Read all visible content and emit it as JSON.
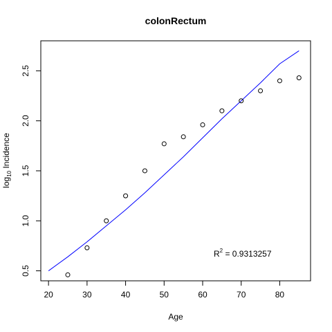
{
  "chart_data": {
    "type": "scatter",
    "title": "colonRectum",
    "xlabel": "Age",
    "ylabel": {
      "base": "log",
      "subscript": "10",
      "rest": " Incidence"
    },
    "xlim": [
      18,
      88
    ],
    "ylim": [
      0.4,
      2.8
    ],
    "x_ticks": [
      20,
      30,
      40,
      50,
      60,
      70,
      80
    ],
    "y_ticks": [
      0.5,
      1.0,
      1.5,
      2.0,
      2.5
    ],
    "y_tick_labels": [
      "0.5",
      "1.0",
      "1.5",
      "2.0",
      "2.5"
    ],
    "grid": false,
    "series": [
      {
        "kind": "points",
        "x": [
          25,
          30,
          35,
          40,
          45,
          50,
          55,
          60,
          65,
          70,
          75,
          80,
          85
        ],
        "y": [
          0.46,
          0.73,
          1.0,
          1.25,
          1.5,
          1.77,
          1.84,
          1.96,
          2.1,
          2.2,
          2.3,
          2.4,
          2.43
        ]
      },
      {
        "kind": "line",
        "color": "#0000ff",
        "x": [
          20,
          25,
          30,
          35,
          40,
          45,
          50,
          55,
          60,
          65,
          70,
          75,
          80,
          85
        ],
        "y": [
          0.5,
          0.64,
          0.79,
          0.95,
          1.11,
          1.28,
          1.46,
          1.64,
          1.83,
          2.02,
          2.2,
          2.38,
          2.57,
          2.7
        ]
      }
    ],
    "annotation": {
      "label": "R",
      "superscript": "2",
      "value": " = 0.9313257"
    }
  }
}
